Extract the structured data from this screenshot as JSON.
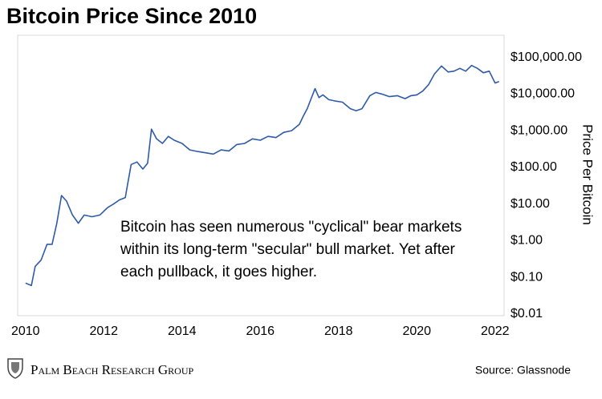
{
  "chart_data": {
    "type": "line",
    "title": "Bitcoin Price Since 2010",
    "y_label": "Price Per Bitcoin",
    "annotation": [
      "Bitcoin has seen numerous \"cyclical\" bear markets",
      "within its long-term \"secular\" bull market. Yet after",
      "each pullback, it goes higher."
    ],
    "source": "Source: Glassnode",
    "brand": "Palm Beach Research Group",
    "y_scale": "log",
    "xlim": [
      2009.8,
      2022.23
    ],
    "xticks": [
      2010,
      2012,
      2014,
      2016,
      2018,
      2020,
      2022
    ],
    "ylim": [
      0.01,
      400000
    ],
    "yticks": [
      {
        "value": 0.01,
        "label": "$0.01"
      },
      {
        "value": 0.1,
        "label": "$0.10"
      },
      {
        "value": 1,
        "label": "$1.00"
      },
      {
        "value": 10,
        "label": "$10.00"
      },
      {
        "value": 100,
        "label": "$100.00"
      },
      {
        "value": 1000,
        "label": "$1,000.00"
      },
      {
        "value": 10000,
        "label": "$10,000.00"
      },
      {
        "value": 100000,
        "label": "$100,000.00"
      }
    ],
    "series": [
      {
        "name": "Price",
        "color": "#2f5aa8",
        "x": [
          2010.0,
          2010.15,
          2010.25,
          2010.4,
          2010.55,
          2010.68,
          2010.8,
          2010.92,
          2011.05,
          2011.2,
          2011.35,
          2011.5,
          2011.7,
          2011.9,
          2012.1,
          2012.25,
          2012.4,
          2012.55,
          2012.62,
          2012.7,
          2012.85,
          2013.0,
          2013.12,
          2013.22,
          2013.35,
          2013.5,
          2013.65,
          2013.8,
          2014.0,
          2014.2,
          2014.4,
          2014.6,
          2014.8,
          2015.0,
          2015.2,
          2015.4,
          2015.6,
          2015.8,
          2016.0,
          2016.2,
          2016.4,
          2016.6,
          2016.8,
          2017.0,
          2017.1,
          2017.2,
          2017.3,
          2017.4,
          2017.5,
          2017.6,
          2017.75,
          2017.9,
          2018.1,
          2018.3,
          2018.45,
          2018.6,
          2018.8,
          2018.95,
          2019.1,
          2019.3,
          2019.5,
          2019.7,
          2019.85,
          2020.0,
          2020.15,
          2020.3,
          2020.45,
          2020.63,
          2020.8,
          2020.95,
          2021.1,
          2021.25,
          2021.4,
          2021.55,
          2021.7,
          2021.85,
          2022.0,
          2022.1
        ],
        "values": [
          0.07,
          0.06,
          0.2,
          0.3,
          0.8,
          0.8,
          3,
          17,
          12,
          5,
          3,
          5,
          4.5,
          5,
          8,
          10,
          13,
          15,
          40,
          120,
          140,
          90,
          130,
          1100,
          600,
          450,
          700,
          550,
          450,
          300,
          270,
          250,
          230,
          300,
          280,
          420,
          450,
          600,
          550,
          700,
          650,
          900,
          1000,
          1500,
          2500,
          4000,
          7500,
          14000,
          8000,
          9500,
          7000,
          6500,
          6000,
          4000,
          3500,
          4000,
          9000,
          11000,
          10000,
          8500,
          9000,
          7500,
          9000,
          9500,
          12000,
          18000,
          35000,
          58000,
          40000,
          42000,
          50000,
          42000,
          60000,
          50000,
          38000,
          42000,
          20000,
          22000
        ]
      }
    ]
  }
}
